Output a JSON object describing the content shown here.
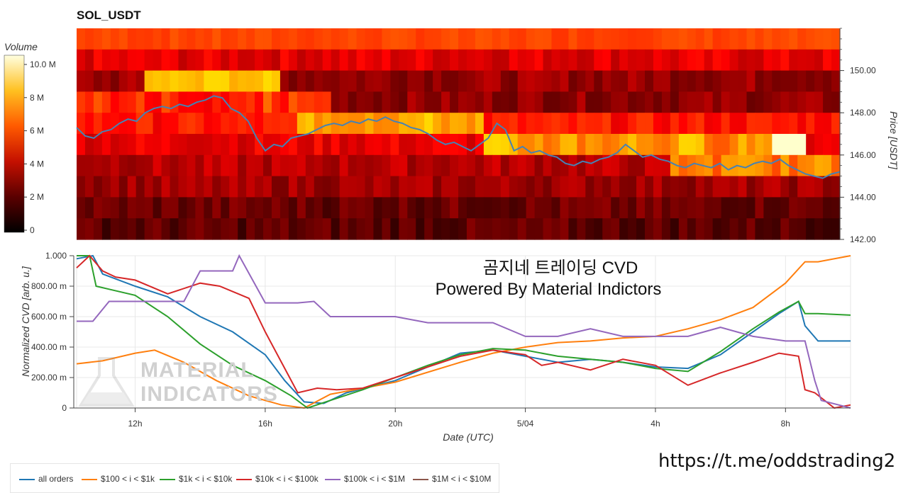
{
  "heatmap": {
    "title": "SOL_USDT",
    "colorbar_label": "Volume",
    "colorbar_ticks": [
      "0",
      "2 M",
      "4 M",
      "6 M",
      "8 M",
      "10.0 M"
    ],
    "price_axis_label": "Price [USDT]",
    "price_ticks": [
      "142.00",
      "144.00",
      "146.00",
      "148.00",
      "150.00"
    ]
  },
  "cvd": {
    "ylabel": "Normalized CVD [arb. u.]",
    "xlabel": "Date (UTC)",
    "y_ticks": [
      "0",
      "200.00 m",
      "400.00 m",
      "600.00 m",
      "800.00 m",
      "1.000"
    ],
    "x_ticks": [
      "12h",
      "16h",
      "20h",
      "5/04",
      "4h",
      "8h"
    ],
    "overlay_line1": "곰지네 트레이딩 CVD",
    "overlay_line2": "Powered By Material Indictors",
    "logo_line1": "MATERIAL",
    "logo_line2": "INDICATORS"
  },
  "url_text": "https://t.me/oddstrading2",
  "legend": [
    {
      "name": "all orders",
      "color": "#1f77b4"
    },
    {
      "name": "$100 < i < $1k",
      "color": "#ff7f0e"
    },
    {
      "name": "$1k < i < $10k",
      "color": "#2ca02c"
    },
    {
      "name": "$10k < i < $100k",
      "color": "#d62728"
    },
    {
      "name": "$100k < i < $1M",
      "color": "#9467bd"
    },
    {
      "name": "$1M < i < $10M",
      "color": "#8c564b"
    }
  ],
  "chart_data": [
    {
      "type": "heatmap",
      "title": "SOL_USDT",
      "ylabel": "Price [USDT]",
      "ylim": [
        142,
        152
      ],
      "colorbar_range": [
        0,
        10000000
      ],
      "overlay_line": {
        "name": "price",
        "color": "#4682b4",
        "x": [
          0,
          3,
          6,
          9,
          12,
          15,
          18,
          21,
          24,
          27,
          30,
          33,
          36,
          39,
          42,
          45,
          48,
          51,
          54,
          57,
          60,
          63,
          66,
          69,
          72,
          75,
          78,
          81,
          84,
          87,
          90,
          93,
          96,
          99,
          102,
          105,
          108,
          111,
          114,
          117,
          120,
          123,
          126,
          129,
          132,
          135,
          138,
          141,
          144,
          147,
          150,
          153,
          156,
          159,
          162,
          165,
          168,
          171,
          174,
          177,
          180,
          183,
          186,
          189,
          192,
          195,
          198,
          201,
          204,
          207,
          210,
          213,
          216,
          219,
          222,
          225,
          228,
          231,
          234,
          237,
          240,
          243,
          246,
          249,
          252,
          255,
          258,
          261,
          264,
          267
        ],
        "y": [
          147.3,
          146.9,
          146.8,
          147.1,
          147.2,
          147.5,
          147.7,
          147.6,
          148.0,
          148.2,
          148.3,
          148.2,
          148.4,
          148.3,
          148.5,
          148.6,
          148.8,
          148.7,
          148.2,
          148.0,
          147.6,
          146.8,
          146.2,
          146.5,
          146.4,
          146.8,
          146.9,
          147.0,
          147.2,
          147.4,
          147.5,
          147.4,
          147.6,
          147.5,
          147.7,
          147.6,
          147.8,
          147.6,
          147.5,
          147.3,
          147.2,
          147.0,
          146.7,
          146.5,
          146.6,
          146.4,
          146.2,
          146.5,
          146.8,
          147.5,
          147.2,
          146.2,
          146.4,
          146.1,
          146.2,
          146.0,
          145.9,
          145.6,
          145.5,
          145.7,
          145.6,
          145.8,
          145.9,
          146.1,
          146.5,
          146.2,
          145.9,
          146.0,
          145.8,
          145.7,
          145.5,
          145.4,
          145.6,
          145.5,
          145.4,
          145.6,
          145.3,
          145.5,
          145.4,
          145.6,
          145.7,
          145.6,
          145.8,
          145.5,
          145.3,
          145.1,
          145.0,
          144.9,
          145.1,
          145.2
        ]
      }
    },
    {
      "type": "line",
      "xlabel": "Date (UTC)",
      "ylabel": "Normalized CVD [arb. u.]",
      "ylim": [
        0,
        1
      ],
      "x_tick_positions": [
        12,
        16,
        20,
        24,
        28,
        32
      ],
      "x_tick_labels": [
        "12h",
        "16h",
        "20h",
        "5/04",
        "4h",
        "8h"
      ],
      "xlim": [
        10.2,
        34.0
      ],
      "series": [
        {
          "name": "all orders",
          "x": [
            10.2,
            10.7,
            11.0,
            12,
            13,
            14,
            15,
            16,
            16.6,
            17.2,
            17.8,
            18.5,
            20,
            21,
            22,
            23,
            24,
            25,
            26,
            27,
            28,
            29,
            30,
            31,
            31.8,
            32.4,
            32.6,
            33,
            34
          ],
          "y": [
            0.98,
            1.0,
            0.88,
            0.8,
            0.73,
            0.6,
            0.5,
            0.35,
            0.18,
            0.04,
            0.03,
            0.1,
            0.18,
            0.27,
            0.36,
            0.38,
            0.34,
            0.3,
            0.32,
            0.3,
            0.27,
            0.26,
            0.35,
            0.5,
            0.62,
            0.7,
            0.54,
            0.44,
            0.44
          ]
        },
        {
          "name": "$100 < i < $1k",
          "x": [
            10.2,
            11,
            12,
            12.6,
            13.5,
            14.5,
            15.5,
            16.5,
            17.2,
            18,
            20,
            22,
            23,
            24,
            25,
            26,
            27,
            28,
            29,
            30,
            31,
            32,
            32.6,
            33,
            34
          ],
          "y": [
            0.29,
            0.31,
            0.36,
            0.38,
            0.3,
            0.18,
            0.08,
            0.02,
            0.0,
            0.09,
            0.17,
            0.3,
            0.36,
            0.4,
            0.43,
            0.44,
            0.46,
            0.47,
            0.52,
            0.58,
            0.66,
            0.82,
            0.96,
            0.96,
            1.0
          ]
        },
        {
          "name": "$1k < i < $10k",
          "x": [
            10.2,
            10.6,
            10.8,
            11.2,
            12,
            13,
            14,
            15,
            16,
            16.8,
            17.3,
            18,
            19,
            20,
            21,
            22,
            23,
            24,
            25,
            26,
            27,
            28,
            29,
            30,
            31,
            31.8,
            32.4,
            32.6,
            33,
            34
          ],
          "y": [
            1.0,
            1.0,
            0.8,
            0.78,
            0.74,
            0.6,
            0.42,
            0.28,
            0.18,
            0.08,
            0.0,
            0.05,
            0.12,
            0.2,
            0.28,
            0.35,
            0.39,
            0.38,
            0.34,
            0.32,
            0.3,
            0.26,
            0.24,
            0.37,
            0.52,
            0.63,
            0.7,
            0.62,
            0.62,
            0.61
          ]
        },
        {
          "name": "$10k < i < $100k",
          "x": [
            10.2,
            10.6,
            11.0,
            11.4,
            12,
            13,
            14,
            14.6,
            15.5,
            16,
            16.5,
            17.0,
            17.6,
            18.2,
            19,
            20,
            21,
            22,
            23,
            24,
            24.5,
            25,
            26,
            27,
            28,
            29,
            30,
            31,
            31.8,
            32.4,
            32.6,
            32.9,
            33.5,
            34
          ],
          "y": [
            0.92,
            1.0,
            0.9,
            0.86,
            0.84,
            0.75,
            0.82,
            0.8,
            0.72,
            0.5,
            0.3,
            0.1,
            0.13,
            0.12,
            0.13,
            0.2,
            0.27,
            0.34,
            0.38,
            0.35,
            0.28,
            0.3,
            0.25,
            0.32,
            0.28,
            0.15,
            0.23,
            0.3,
            0.36,
            0.34,
            0.12,
            0.1,
            0.0,
            0.02
          ]
        },
        {
          "name": "$100k < i < $1M",
          "x": [
            10.2,
            10.7,
            11.2,
            12.5,
            13.5,
            14,
            15,
            15.2,
            16,
            17,
            17.5,
            18,
            20,
            21,
            22,
            23,
            24,
            25,
            26,
            27,
            28,
            29,
            30,
            31,
            32,
            32.6,
            32.9,
            33.1,
            34
          ],
          "y": [
            0.57,
            0.57,
            0.7,
            0.7,
            0.7,
            0.9,
            0.9,
            1.0,
            0.69,
            0.69,
            0.7,
            0.6,
            0.6,
            0.56,
            0.56,
            0.56,
            0.47,
            0.47,
            0.52,
            0.47,
            0.47,
            0.47,
            0.53,
            0.47,
            0.44,
            0.44,
            0.18,
            0.05,
            0.0
          ]
        },
        {
          "name": "$1M < i < $10M",
          "x": [],
          "y": []
        }
      ]
    }
  ]
}
